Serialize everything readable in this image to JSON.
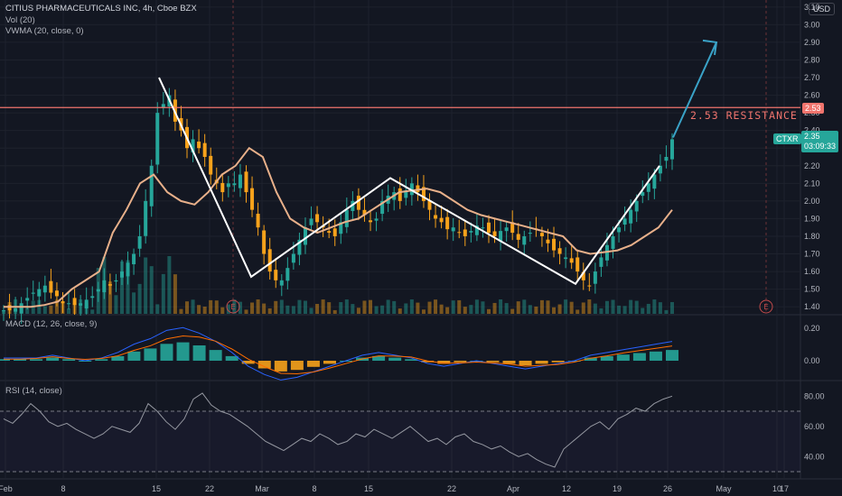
{
  "header": {
    "title": "CITIUS PHARMACEUTICALS INC, 4h, Cboe BZX",
    "vol_label": "Vol (20)",
    "vwma_label": "VWMA (20, close, 0)",
    "macd_label": "MACD (12, 26, close, 9)",
    "rsi_label": "RSI (14, close)",
    "currency": "USD"
  },
  "price_tag": {
    "symbol": "CTXR",
    "price": "2.35",
    "countdown": "03:09:33"
  },
  "resistance": {
    "value": 2.53,
    "tag": "2.53",
    "label": "2.53 RESISTANCE"
  },
  "earnings_marker": "E",
  "colors": {
    "up": "#26a69a",
    "down": "#f7a21b",
    "vwma": "#e8b08a",
    "macd": "#2962ff",
    "signal": "#ff6d00",
    "rsi": "#9598a1",
    "resistance": "#f0746d",
    "pattern": "#ffffff",
    "arrow": "#3aa3c8"
  },
  "chart_data": {
    "type": "candlestick",
    "x_tick_labels": [
      "Feb",
      "8",
      "15",
      "22",
      "Mar",
      "8",
      "15",
      "22",
      "Apr",
      "12",
      "19",
      "26",
      "May",
      "10",
      "17"
    ],
    "price_axis": {
      "ticks": [
        "1.40",
        "1.50",
        "1.60",
        "1.70",
        "1.80",
        "1.90",
        "2.00",
        "2.10",
        "2.20",
        "2.30",
        "2.40",
        "2.50",
        "2.60",
        "2.70",
        "2.80",
        "2.90",
        "3.00",
        "3.10"
      ],
      "range": [
        1.36,
        3.14
      ]
    },
    "macd_axis": {
      "ticks": [
        "0.20",
        "0.00"
      ]
    },
    "rsi_axis": {
      "ticks": [
        "80.00",
        "60.00",
        "40.00"
      ],
      "bands": [
        70,
        30
      ]
    },
    "close_path": [
      1.38,
      1.38,
      1.39,
      1.42,
      1.45,
      1.48,
      1.5,
      1.52,
      1.48,
      1.46,
      1.42,
      1.42,
      1.41,
      1.42,
      1.44,
      1.46,
      1.5,
      1.55,
      1.52,
      1.55,
      1.6,
      1.65,
      1.7,
      1.8,
      2.0,
      2.2,
      2.5,
      2.55,
      2.6,
      2.45,
      2.4,
      2.3,
      2.35,
      2.3,
      2.25,
      2.15,
      2.1,
      2.05,
      2.1,
      2.1,
      2.15,
      2.05,
      1.95,
      1.85,
      1.7,
      1.6,
      1.55,
      1.55,
      1.62,
      1.7,
      1.78,
      1.85,
      1.9,
      1.88,
      1.85,
      1.82,
      1.8,
      1.88,
      1.95,
      2.0,
      1.95,
      1.92,
      1.88,
      1.9,
      2.0,
      2.03,
      2.05,
      2.0,
      2.06,
      2.1,
      2.05,
      2.0,
      1.95,
      1.9,
      1.88,
      1.84,
      1.85,
      1.82,
      1.8,
      1.83,
      1.86,
      1.85,
      1.82,
      1.8,
      1.83,
      1.85,
      1.82,
      1.78,
      1.8,
      1.82,
      1.84,
      1.8,
      1.76,
      1.72,
      1.7,
      1.68,
      1.65,
      1.6,
      1.55,
      1.52,
      1.6,
      1.68,
      1.75,
      1.8,
      1.85,
      1.9,
      1.95,
      2.0,
      2.05,
      2.1,
      2.15,
      2.2,
      2.25,
      2.35
    ],
    "vwma_path": [
      1.4,
      1.4,
      1.4,
      1.41,
      1.43,
      1.5,
      1.55,
      1.6,
      1.82,
      1.95,
      2.1,
      2.15,
      2.05,
      2.0,
      1.98,
      2.05,
      2.15,
      2.2,
      2.3,
      2.25,
      2.05,
      1.9,
      1.85,
      1.82,
      1.85,
      1.88,
      1.9,
      1.95,
      2.0,
      2.05,
      2.06,
      2.07,
      2.05,
      2.0,
      1.95,
      1.92,
      1.9,
      1.88,
      1.86,
      1.84,
      1.82,
      1.8,
      1.72,
      1.7,
      1.71,
      1.72,
      1.75,
      1.8,
      1.85,
      1.95
    ],
    "pattern_points": [
      [
        2.7,
        "Feb 22"
      ],
      [
        1.57,
        "Mar 8"
      ],
      [
        2.13,
        "Mar 24"
      ],
      [
        1.53,
        "Apr 19"
      ],
      [
        2.2,
        "May 1"
      ]
    ],
    "projection_target": 2.9,
    "rsi_path": [
      65,
      62,
      68,
      75,
      70,
      63,
      60,
      62,
      58,
      55,
      52,
      55,
      60,
      58,
      56,
      62,
      75,
      70,
      63,
      58,
      65,
      78,
      82,
      74,
      70,
      68,
      64,
      60,
      55,
      50,
      47,
      44,
      48,
      52,
      50,
      55,
      52,
      48,
      50,
      55,
      53,
      58,
      55,
      52,
      56,
      60,
      55,
      50,
      52,
      48,
      53,
      55,
      50,
      48,
      45,
      47,
      43,
      40,
      42,
      38,
      35,
      33,
      45,
      50,
      55,
      60,
      63,
      58,
      65,
      68,
      72,
      70,
      75,
      78,
      80
    ],
    "macd_hist": [
      0.01,
      0.01,
      0.01,
      0.02,
      0.01,
      0,
      0.01,
      0.03,
      0.06,
      0.08,
      0.11,
      0.12,
      0.1,
      0.07,
      0.03,
      -0.02,
      -0.05,
      -0.07,
      -0.06,
      -0.04,
      -0.02,
      0,
      0.02,
      0.03,
      0.02,
      0.01,
      -0.01,
      -0.02,
      -0.01,
      0,
      -0.01,
      -0.02,
      -0.03,
      -0.02,
      -0.01,
      0,
      0.02,
      0.03,
      0.04,
      0.05,
      0.06,
      0.07
    ]
  }
}
